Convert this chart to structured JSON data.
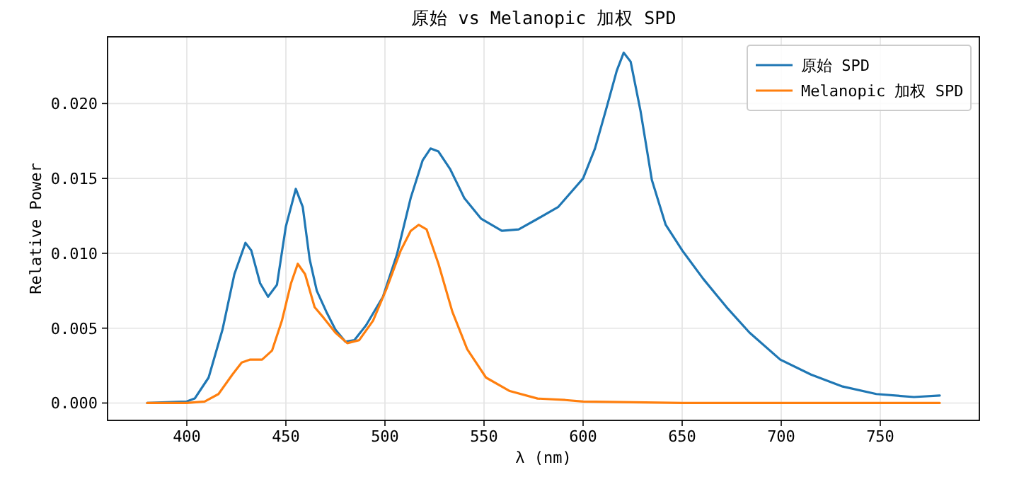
{
  "chart_data": {
    "type": "line",
    "title": "原始 vs Melanopic 加权 SPD",
    "xlabel": "λ (nm)",
    "ylabel": "Relative Power",
    "xlim": [
      360,
      800
    ],
    "ylim": [
      -0.00116,
      0.02446
    ],
    "xticks": [
      400,
      450,
      500,
      550,
      600,
      650,
      700,
      750
    ],
    "yticks": [
      {
        "value": 0,
        "label": "0.000"
      },
      {
        "value": 0.005,
        "label": "0.005"
      },
      {
        "value": 0.01,
        "label": "0.010"
      },
      {
        "value": 0.015,
        "label": "0.015"
      },
      {
        "value": 0.02,
        "label": "0.020"
      }
    ],
    "grid": true,
    "legend": "top right",
    "marker": "none",
    "line_style": "solid",
    "series": [
      {
        "name": "原始 SPD",
        "color": "#1f77b4",
        "x": [
          380,
          400,
          404,
          411,
          418,
          424,
          429.6,
          432.5,
          437,
          441,
          445.5,
          450,
          455,
          458.5,
          462,
          465.6,
          470.4,
          475,
          480,
          484.6,
          490.5,
          499,
          506,
          513,
          519,
          523,
          527,
          533,
          540,
          548.6,
          559,
          567.5,
          577,
          587.5,
          600,
          606,
          612,
          617,
          620.5,
          624,
          629,
          634.7,
          641.7,
          650,
          660.6,
          672.4,
          684,
          699.5,
          715,
          731,
          748,
          767,
          780
        ],
        "values": [
          0,
          0.0001,
          0.0003,
          0.0017,
          0.0049,
          0.0086,
          0.0107,
          0.0102,
          0.008,
          0.0071,
          0.0079,
          0.0118,
          0.0143,
          0.0131,
          0.0096,
          0.0075,
          0.0061,
          0.0049,
          0.0041,
          0.0042,
          0.0052,
          0.0071,
          0.0099,
          0.0137,
          0.0162,
          0.017,
          0.0168,
          0.0156,
          0.0137,
          0.0123,
          0.0115,
          0.0116,
          0.0123,
          0.0131,
          0.015,
          0.017,
          0.0198,
          0.0222,
          0.0234,
          0.0228,
          0.0195,
          0.0149,
          0.0119,
          0.0102,
          0.0083,
          0.0064,
          0.0047,
          0.0029,
          0.0019,
          0.0011,
          0.0006,
          0.0004,
          0.0005
        ]
      },
      {
        "name": "Melanopic 加权 SPD",
        "color": "#ff7f0e",
        "x": [
          380,
          400,
          409,
          416,
          423,
          427.7,
          432,
          438,
          443,
          448,
          452.6,
          456,
          459.7,
          464.5,
          469,
          475,
          481,
          487,
          494,
          501,
          508,
          513,
          517,
          521,
          527,
          534,
          541.5,
          551,
          563,
          577,
          591,
          600,
          650,
          780
        ],
        "values": [
          0,
          0,
          0.0001,
          0.0006,
          0.0019,
          0.0027,
          0.0029,
          0.0029,
          0.0035,
          0.0055,
          0.008,
          0.0093,
          0.0086,
          0.0064,
          0.0057,
          0.0047,
          0.004,
          0.0042,
          0.0055,
          0.0077,
          0.0102,
          0.0115,
          0.0119,
          0.0116,
          0.0093,
          0.0061,
          0.0036,
          0.0017,
          0.0008,
          0.0003,
          0.0002,
          0.0001,
          0,
          0
        ]
      }
    ]
  }
}
